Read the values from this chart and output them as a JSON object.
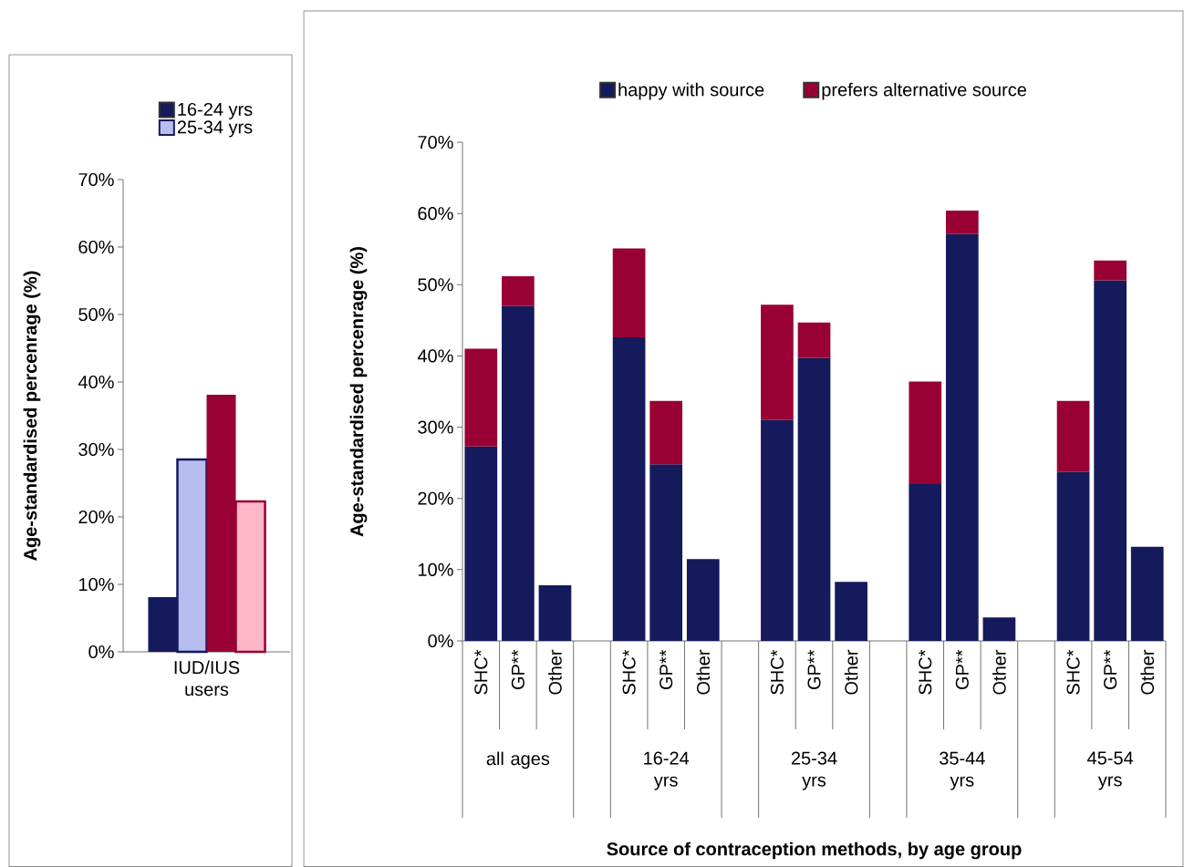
{
  "chart_data": [
    {
      "type": "bar",
      "categories": [
        "IUD/IUS users"
      ],
      "ylabel": "Age-standardised percenrage (%)",
      "ylim": [
        0,
        70
      ],
      "yticks": [
        {
          "value": 0,
          "label": "0%"
        },
        {
          "value": 10,
          "label": "10%"
        },
        {
          "value": 20,
          "label": "20%"
        },
        {
          "value": 30,
          "label": "30%"
        },
        {
          "value": 40,
          "label": "40%"
        },
        {
          "value": 50,
          "label": "50%"
        },
        {
          "value": 60,
          "label": "60%"
        },
        {
          "value": 70,
          "label": "70%"
        }
      ],
      "legend": "top",
      "series": [
        {
          "name": "16-24 yrs",
          "color": "#141a5c",
          "values": [
            8.1
          ]
        },
        {
          "name": "25-34 yrs",
          "color": "#b8bdf0",
          "values": [
            28.5
          ]
        },
        {
          "color": "#990033",
          "values": [
            38.1
          ]
        },
        {
          "color": "#ffb6c8",
          "values": [
            22.3
          ]
        }
      ]
    },
    {
      "type": "bar",
      "stacked": true,
      "categories": [
        "SHC*",
        "GP**",
        "Other",
        null,
        "SHC*",
        "GP**",
        "Other",
        null,
        "SHC*",
        "GP**",
        "Other",
        null,
        "SHC*",
        "GP**",
        "Other",
        null,
        "SHC*",
        "GP**",
        "Other"
      ],
      "xlabel": "Source of contraception methods, by age group",
      "ylabel": "Age-standardised percenrage (%)",
      "ylim": [
        0,
        70
      ],
      "yticks": [
        {
          "value": 0,
          "label": "0%"
        },
        {
          "value": 10,
          "label": "10%"
        },
        {
          "value": 20,
          "label": "20%"
        },
        {
          "value": 30,
          "label": "30%"
        },
        {
          "value": 40,
          "label": "40%"
        },
        {
          "value": 50,
          "label": "50%"
        },
        {
          "value": 60,
          "label": "60%"
        },
        {
          "value": 70,
          "label": "70%"
        }
      ],
      "legend": "top",
      "annotations": [
        "all ages",
        "16-24 yrs",
        "25-34 yrs",
        "35-44 yrs",
        "45-54 yrs"
      ],
      "series": [
        {
          "name": "happy with source",
          "color": "#141a5c",
          "values": [
            27.3,
            47.0,
            7.8,
            null,
            42.6,
            24.8,
            11.5,
            null,
            31.0,
            39.7,
            8.3,
            null,
            22.0,
            57.1,
            3.3,
            null,
            23.7,
            50.6,
            13.2
          ]
        },
        {
          "name": "prefers alternative source",
          "color": "#990033",
          "values": [
            13.7,
            4.2,
            null,
            null,
            12.5,
            8.9,
            null,
            null,
            16.2,
            5.0,
            null,
            null,
            14.4,
            3.3,
            null,
            null,
            10.0,
            2.8,
            null
          ]
        }
      ]
    }
  ]
}
